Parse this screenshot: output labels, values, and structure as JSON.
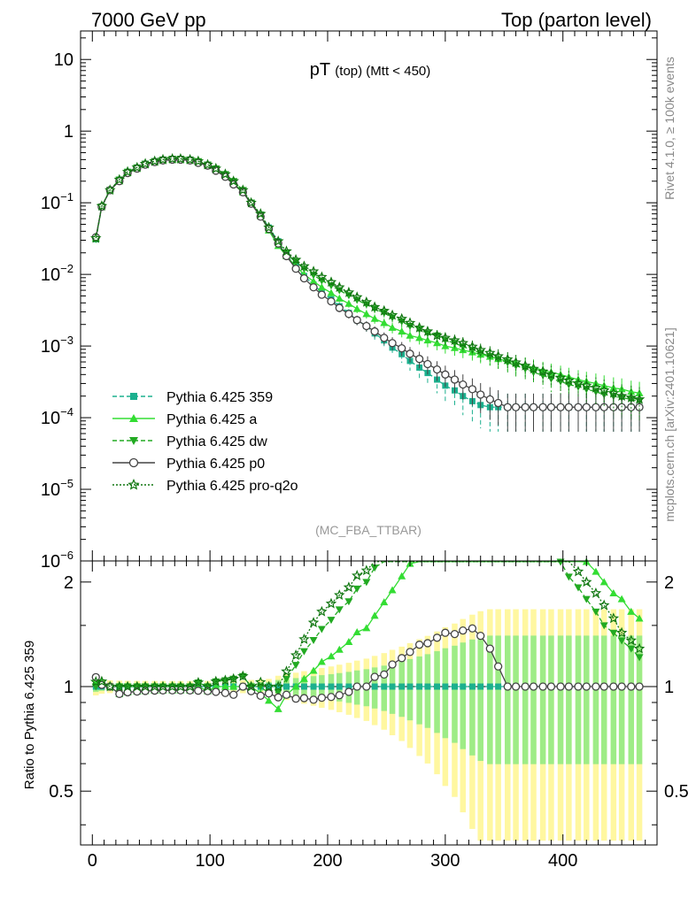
{
  "header": {
    "left": "7000 GeV pp",
    "right": "Top (parton level)"
  },
  "side_labels": {
    "rivet": "Rivet 4.1.0, ≥ 100k events",
    "mcplots": "mcplots.cern.ch [arXiv:2401.10621]"
  },
  "chart_data": {
    "type": "line",
    "title": "pT",
    "title_sub": "(top) (Mtt < 450)",
    "watermark": "(MC_FBA_TTBAR)",
    "xlabel": "",
    "ylabel_top": "",
    "ylabel_ratio": "Ratio to Pythia 6.425 359",
    "xlim": [
      -10,
      480
    ],
    "ylim_top": [
      1e-06,
      25
    ],
    "ylim_ratio": [
      0.35,
      2.3
    ],
    "x_ticks": [
      "0",
      "100",
      "200",
      "300",
      "400"
    ],
    "y_ticks_top": [
      "10^-6",
      "10^-5",
      "10^-4",
      "10^-3",
      "10^-2",
      "10^-1",
      "1",
      "10"
    ],
    "y_ticks_ratio": [
      "0.5",
      "1",
      "2"
    ],
    "reference_line": 1,
    "series": [
      {
        "name": "Pythia 6.425 359",
        "color": "#1bb08e",
        "marker": "square",
        "line": "dashed",
        "x": [
          3,
          8,
          15,
          23,
          30,
          38,
          45,
          53,
          60,
          68,
          75,
          83,
          90,
          98,
          105,
          113,
          120,
          128,
          135,
          143,
          150,
          158,
          165,
          173,
          180,
          188,
          195,
          203,
          210,
          218,
          225,
          233,
          240,
          248,
          255,
          263,
          270,
          278,
          285,
          293,
          300,
          308,
          315,
          323,
          330,
          338,
          345,
          353,
          360,
          368,
          375,
          383,
          390,
          398,
          405,
          413,
          420,
          428,
          435,
          443,
          450,
          458,
          465
        ],
        "y": [
          0.031,
          0.087,
          0.15,
          0.21,
          0.27,
          0.31,
          0.35,
          0.38,
          0.4,
          0.41,
          0.41,
          0.4,
          0.37,
          0.34,
          0.29,
          0.24,
          0.19,
          0.14,
          0.1,
          0.068,
          0.045,
          0.029,
          0.019,
          0.013,
          0.0095,
          0.0072,
          0.0056,
          0.0045,
          0.0036,
          0.0029,
          0.0023,
          0.0019,
          0.0015,
          0.0012,
          0.00095,
          0.00077,
          0.00062,
          0.0005,
          0.00042,
          0.00034,
          0.00028,
          0.00024,
          0.0002,
          0.00017,
          0.00015,
          0.00014,
          0.00014,
          0.00014,
          0.00014,
          0.00014,
          0.00014,
          0.00014,
          0.00014,
          0.00014,
          0.00014,
          0.00014,
          0.00014,
          0.00014,
          0.00014,
          0.00014,
          0.00014,
          0.00014,
          0.00014
        ]
      },
      {
        "name": "Pythia 6.425 a",
        "color": "#33dd33",
        "marker": "triangle-up",
        "line": "solid",
        "x": [
          3,
          8,
          15,
          23,
          30,
          38,
          45,
          53,
          60,
          68,
          75,
          83,
          90,
          98,
          105,
          113,
          120,
          128,
          135,
          143,
          150,
          158,
          165,
          173,
          180,
          188,
          195,
          203,
          210,
          218,
          225,
          233,
          240,
          248,
          255,
          263,
          270,
          278,
          285,
          293,
          300,
          308,
          315,
          323,
          330,
          338,
          345,
          353,
          360,
          368,
          375,
          383,
          390,
          398,
          405,
          413,
          420,
          428,
          435,
          443,
          450,
          458,
          465
        ],
        "y": [
          0.032,
          0.09,
          0.15,
          0.2,
          0.26,
          0.3,
          0.34,
          0.37,
          0.39,
          0.4,
          0.4,
          0.39,
          0.37,
          0.33,
          0.29,
          0.24,
          0.19,
          0.14,
          0.1,
          0.065,
          0.041,
          0.025,
          0.018,
          0.013,
          0.01,
          0.008,
          0.0066,
          0.0055,
          0.0046,
          0.0039,
          0.0033,
          0.0028,
          0.0024,
          0.0021,
          0.0018,
          0.0016,
          0.0014,
          0.0013,
          0.0012,
          0.0011,
          0.001,
          0.00094,
          0.00088,
          0.00082,
          0.00076,
          0.00071,
          0.00066,
          0.00062,
          0.00058,
          0.00054,
          0.0005,
          0.00046,
          0.00043,
          0.0004,
          0.00037,
          0.00034,
          0.00032,
          0.0003,
          0.00028,
          0.00026,
          0.00025,
          0.00023,
          0.00022
        ]
      },
      {
        "name": "Pythia 6.425 dw",
        "color": "#22aa22",
        "marker": "triangle-down",
        "line": "dashed",
        "x": [
          3,
          8,
          15,
          23,
          30,
          38,
          45,
          53,
          60,
          68,
          75,
          83,
          90,
          98,
          105,
          113,
          120,
          128,
          135,
          143,
          150,
          158,
          165,
          173,
          180,
          188,
          195,
          203,
          210,
          218,
          225,
          233,
          240,
          248,
          255,
          263,
          270,
          278,
          285,
          293,
          300,
          308,
          315,
          323,
          330,
          338,
          345,
          353,
          360,
          368,
          375,
          383,
          390,
          398,
          405,
          413,
          420,
          428,
          435,
          443,
          450,
          458,
          465
        ],
        "y": [
          0.031,
          0.088,
          0.15,
          0.21,
          0.27,
          0.31,
          0.35,
          0.38,
          0.4,
          0.41,
          0.41,
          0.4,
          0.38,
          0.34,
          0.3,
          0.25,
          0.2,
          0.15,
          0.1,
          0.068,
          0.043,
          0.028,
          0.02,
          0.015,
          0.012,
          0.0098,
          0.0082,
          0.007,
          0.006,
          0.0051,
          0.0044,
          0.0038,
          0.0033,
          0.0029,
          0.0025,
          0.0022,
          0.0019,
          0.0017,
          0.0015,
          0.0014,
          0.0012,
          0.0011,
          0.00098,
          0.00088,
          0.0008,
          0.00072,
          0.00065,
          0.00059,
          0.00053,
          0.00048,
          0.00043,
          0.00039,
          0.00035,
          0.00032,
          0.00029,
          0.00027,
          0.00025,
          0.00023,
          0.00021,
          0.0002,
          0.00019,
          0.00018,
          0.00017
        ]
      },
      {
        "name": "Pythia 6.425 p0",
        "color": "#444444",
        "marker": "circle-open",
        "line": "solid",
        "x": [
          3,
          8,
          15,
          23,
          30,
          38,
          45,
          53,
          60,
          68,
          75,
          83,
          90,
          98,
          105,
          113,
          120,
          128,
          135,
          143,
          150,
          158,
          165,
          173,
          180,
          188,
          195,
          203,
          210,
          218,
          225,
          233,
          240,
          248,
          255,
          263,
          270,
          278,
          285,
          293,
          300,
          308,
          315,
          323,
          330,
          338,
          345,
          353,
          360,
          368,
          375,
          383,
          390,
          398,
          405,
          413,
          420,
          428,
          435,
          443,
          450,
          458,
          465
        ],
        "y": [
          0.033,
          0.088,
          0.15,
          0.2,
          0.26,
          0.3,
          0.34,
          0.37,
          0.39,
          0.4,
          0.4,
          0.39,
          0.36,
          0.33,
          0.28,
          0.23,
          0.18,
          0.14,
          0.097,
          0.064,
          0.043,
          0.027,
          0.018,
          0.012,
          0.0088,
          0.0066,
          0.0052,
          0.0042,
          0.0034,
          0.0028,
          0.0023,
          0.0019,
          0.0016,
          0.0013,
          0.0011,
          0.00093,
          0.00078,
          0.00066,
          0.00056,
          0.00047,
          0.0004,
          0.00034,
          0.00029,
          0.00025,
          0.00021,
          0.00018,
          0.00016,
          0.00014,
          0.00014,
          0.00014,
          0.00014,
          0.00014,
          0.00014,
          0.00014,
          0.00014,
          0.00014,
          0.00014,
          0.00014,
          0.00014,
          0.00014,
          0.00014,
          0.00014,
          0.00014
        ]
      },
      {
        "name": "Pythia 6.425 pro-q2o",
        "color": "#117711",
        "marker": "star-open",
        "line": "dotted",
        "x": [
          3,
          8,
          15,
          23,
          30,
          38,
          45,
          53,
          60,
          68,
          75,
          83,
          90,
          98,
          105,
          113,
          120,
          128,
          135,
          143,
          150,
          158,
          165,
          173,
          180,
          188,
          195,
          203,
          210,
          218,
          225,
          233,
          240,
          248,
          255,
          263,
          270,
          278,
          285,
          293,
          300,
          308,
          315,
          323,
          330,
          338,
          345,
          353,
          360,
          368,
          375,
          383,
          390,
          398,
          405,
          413,
          420,
          428,
          435,
          443,
          450,
          458,
          465
        ],
        "y": [
          0.032,
          0.09,
          0.15,
          0.21,
          0.27,
          0.31,
          0.35,
          0.38,
          0.4,
          0.41,
          0.41,
          0.4,
          0.38,
          0.34,
          0.3,
          0.25,
          0.2,
          0.15,
          0.1,
          0.07,
          0.045,
          0.029,
          0.021,
          0.016,
          0.013,
          0.011,
          0.0092,
          0.0078,
          0.0066,
          0.0056,
          0.0048,
          0.0041,
          0.0035,
          0.0031,
          0.0027,
          0.0024,
          0.0021,
          0.0018,
          0.0016,
          0.0014,
          0.0013,
          0.0012,
          0.0011,
          0.00098,
          0.00088,
          0.0008,
          0.00072,
          0.00065,
          0.00059,
          0.00053,
          0.00048,
          0.00044,
          0.0004,
          0.00036,
          0.00033,
          0.0003,
          0.00028,
          0.00026,
          0.00024,
          0.00022,
          0.0002,
          0.00019,
          0.00018
        ]
      }
    ]
  }
}
